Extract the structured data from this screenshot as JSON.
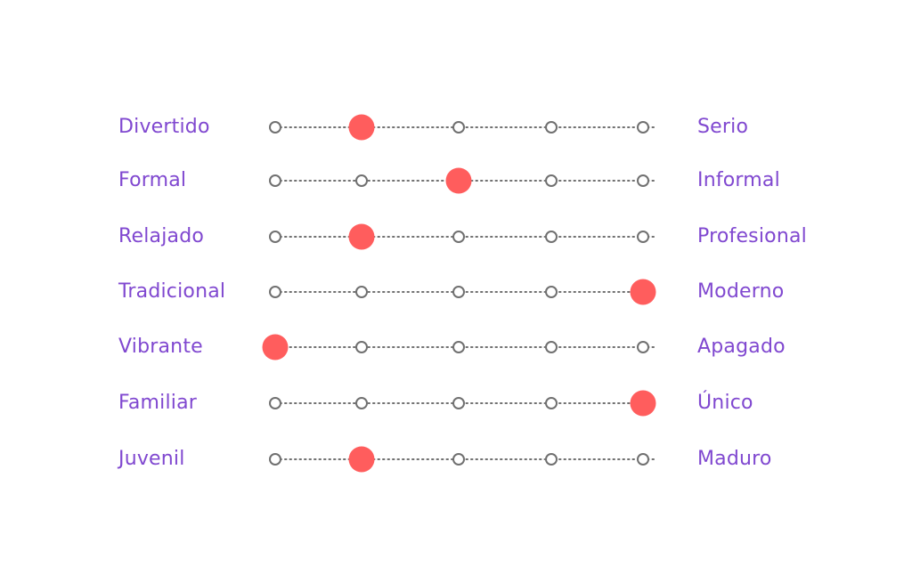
{
  "accent_color": "#ff5d5d",
  "label_color": "#8048d0",
  "track_color": "#707070",
  "scale_points": 5,
  "scales": [
    {
      "left": "Divertido",
      "right": "Serio",
      "selected": 2
    },
    {
      "left": "Formal",
      "right": "Informal",
      "selected": 3
    },
    {
      "left": "Relajado",
      "right": "Profesional",
      "selected": 2
    },
    {
      "left": "Tradicional",
      "right": "Moderno",
      "selected": 5
    },
    {
      "left": "Vibrante",
      "right": "Apagado",
      "selected": 1
    },
    {
      "left": "Familiar",
      "right": "Único",
      "selected": 5
    },
    {
      "left": "Juvenil",
      "right": "Maduro",
      "selected": 2
    }
  ]
}
